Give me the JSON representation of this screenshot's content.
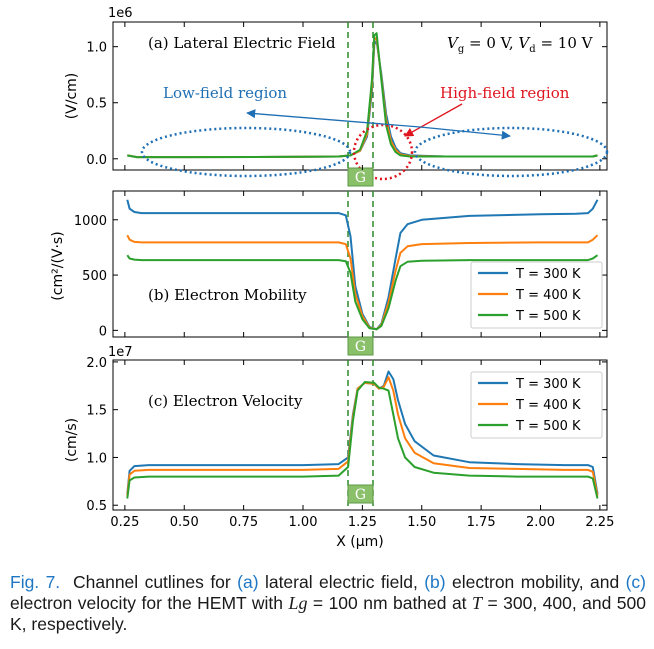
{
  "chart_data": [
    {
      "type": "line",
      "panel": "a",
      "title": "(a) Lateral Electric Field",
      "condition_text": "V_g = 0 V, V_d = 10 V",
      "ylabel": "(V/cm)",
      "scale_label": "1e6",
      "ylim": [
        -0.1,
        1.22
      ],
      "xlim": [
        0.2,
        2.28
      ],
      "yticks": [
        0.0,
        0.5,
        1.0
      ],
      "ytick_labels": [
        "0.0",
        "0.5",
        "1.0"
      ],
      "series": [
        {
          "name": "T = 300 K",
          "color": "#1f77b4",
          "x": [
            0.26,
            0.3,
            0.5,
            0.8,
            1.0,
            1.15,
            1.2,
            1.24,
            1.27,
            1.29,
            1.3,
            1.31,
            1.33,
            1.35,
            1.37,
            1.39,
            1.41,
            1.45,
            1.6,
            2.0,
            2.22,
            2.24
          ],
          "y": [
            0.03,
            0.015,
            0.015,
            0.016,
            0.018,
            0.02,
            0.03,
            0.07,
            0.2,
            0.6,
            1.02,
            1.05,
            0.75,
            0.4,
            0.2,
            0.1,
            0.05,
            0.03,
            0.02,
            0.02,
            0.02,
            0.03
          ]
        },
        {
          "name": "T = 400 K",
          "color": "#ff7f0e",
          "x": [
            0.26,
            0.3,
            0.5,
            0.8,
            1.0,
            1.15,
            1.2,
            1.24,
            1.27,
            1.29,
            1.3,
            1.31,
            1.33,
            1.35,
            1.37,
            1.39,
            1.41,
            1.45,
            1.6,
            2.0,
            2.22,
            2.24
          ],
          "y": [
            0.03,
            0.015,
            0.015,
            0.016,
            0.018,
            0.02,
            0.03,
            0.07,
            0.22,
            0.65,
            1.06,
            1.08,
            0.72,
            0.35,
            0.16,
            0.08,
            0.04,
            0.025,
            0.02,
            0.02,
            0.02,
            0.03
          ]
        },
        {
          "name": "T = 500 K",
          "color": "#2ca02c",
          "x": [
            0.26,
            0.3,
            0.5,
            0.8,
            1.0,
            1.15,
            1.2,
            1.24,
            1.27,
            1.29,
            1.3,
            1.31,
            1.33,
            1.35,
            1.37,
            1.39,
            1.41,
            1.45,
            1.6,
            2.0,
            2.22,
            2.24
          ],
          "y": [
            0.03,
            0.015,
            0.015,
            0.016,
            0.018,
            0.02,
            0.03,
            0.08,
            0.25,
            0.7,
            1.1,
            1.12,
            0.7,
            0.3,
            0.13,
            0.06,
            0.03,
            0.02,
            0.02,
            0.02,
            0.02,
            0.03
          ]
        }
      ],
      "annotations": [
        {
          "text": "Low-field region",
          "color": "#1f6fb4"
        },
        {
          "text": "High-field region",
          "color": "#e0141e"
        }
      ],
      "gate_label": "G"
    },
    {
      "type": "line",
      "panel": "b",
      "title": "(b) Electron Mobility",
      "ylabel": "(cm²/(V·s)",
      "ylim": [
        -60,
        1260
      ],
      "xlim": [
        0.2,
        2.28
      ],
      "yticks": [
        0,
        500,
        1000
      ],
      "ytick_labels": [
        "0",
        "500",
        "1000"
      ],
      "legend": [
        "T = 300 K",
        "T = 400 K",
        "T = 500 K"
      ],
      "series": [
        {
          "name": "T = 300 K",
          "color": "#1f77b4",
          "x": [
            0.26,
            0.27,
            0.29,
            0.32,
            0.6,
            1.0,
            1.15,
            1.18,
            1.2,
            1.22,
            1.25,
            1.28,
            1.31,
            1.33,
            1.36,
            1.39,
            1.41,
            1.44,
            1.5,
            1.7,
            2.0,
            2.15,
            2.2,
            2.22,
            2.24
          ],
          "y": [
            1180,
            1100,
            1070,
            1060,
            1060,
            1060,
            1060,
            1040,
            850,
            400,
            150,
            30,
            10,
            60,
            300,
            650,
            880,
            960,
            1000,
            1035,
            1050,
            1055,
            1060,
            1100,
            1180
          ]
        },
        {
          "name": "T = 400 K",
          "color": "#ff7f0e",
          "x": [
            0.26,
            0.27,
            0.29,
            0.32,
            0.6,
            1.0,
            1.15,
            1.18,
            1.2,
            1.22,
            1.25,
            1.28,
            1.31,
            1.33,
            1.36,
            1.39,
            1.41,
            1.44,
            1.5,
            1.7,
            2.0,
            2.15,
            2.2,
            2.22,
            2.24
          ],
          "y": [
            860,
            820,
            800,
            795,
            795,
            795,
            795,
            780,
            650,
            330,
            130,
            25,
            10,
            50,
            250,
            540,
            700,
            760,
            780,
            790,
            795,
            795,
            795,
            820,
            860
          ]
        },
        {
          "name": "T = 500 K",
          "color": "#2ca02c",
          "x": [
            0.26,
            0.27,
            0.29,
            0.32,
            0.6,
            1.0,
            1.15,
            1.18,
            1.2,
            1.22,
            1.25,
            1.28,
            1.31,
            1.33,
            1.36,
            1.39,
            1.41,
            1.44,
            1.5,
            1.7,
            2.0,
            2.15,
            2.2,
            2.22,
            2.24
          ],
          "y": [
            680,
            650,
            640,
            635,
            635,
            635,
            635,
            625,
            520,
            260,
            100,
            20,
            10,
            40,
            200,
            450,
            580,
            620,
            630,
            635,
            635,
            635,
            635,
            650,
            680
          ]
        }
      ],
      "gate_label": "G"
    },
    {
      "type": "line",
      "panel": "c",
      "title": "(c) Electron Velocity",
      "ylabel": "(cm/s)",
      "scale_label": "1e7",
      "ylim": [
        0.45,
        2.02
      ],
      "xlim": [
        0.2,
        2.28
      ],
      "xlabel": "X (μm)",
      "yticks": [
        0.5,
        1.0,
        1.5,
        2.0
      ],
      "ytick_labels": [
        "0.5",
        "1.0",
        "1.5",
        "2.0"
      ],
      "xticks": [
        0.25,
        0.5,
        0.75,
        1.0,
        1.25,
        1.5,
        1.75,
        2.0,
        2.25
      ],
      "xtick_labels": [
        "0.25",
        "0.50",
        "0.75",
        "1.00",
        "1.25",
        "1.50",
        "1.75",
        "2.00",
        "2.25"
      ],
      "legend": [
        "T = 300 K",
        "T = 400 K",
        "T = 500 K"
      ],
      "series": [
        {
          "name": "T = 300 K",
          "color": "#1f77b4",
          "x": [
            0.26,
            0.27,
            0.29,
            0.35,
            0.6,
            1.0,
            1.15,
            1.19,
            1.21,
            1.23,
            1.26,
            1.3,
            1.32,
            1.34,
            1.36,
            1.38,
            1.4,
            1.43,
            1.47,
            1.55,
            1.7,
            1.9,
            2.1,
            2.2,
            2.22,
            2.24
          ],
          "y": [
            0.62,
            0.86,
            0.91,
            0.92,
            0.92,
            0.92,
            0.93,
            1.0,
            1.45,
            1.72,
            1.78,
            1.77,
            1.72,
            1.75,
            1.9,
            1.82,
            1.6,
            1.35,
            1.17,
            1.02,
            0.95,
            0.93,
            0.92,
            0.92,
            0.9,
            0.62
          ]
        },
        {
          "name": "T = 400 K",
          "color": "#ff7f0e",
          "x": [
            0.26,
            0.27,
            0.29,
            0.35,
            0.6,
            1.0,
            1.15,
            1.19,
            1.21,
            1.23,
            1.26,
            1.3,
            1.32,
            1.34,
            1.36,
            1.38,
            1.4,
            1.43,
            1.47,
            1.55,
            1.7,
            1.9,
            2.1,
            2.2,
            2.22,
            2.24
          ],
          "y": [
            0.6,
            0.82,
            0.86,
            0.87,
            0.87,
            0.87,
            0.88,
            0.96,
            1.42,
            1.72,
            1.78,
            1.77,
            1.72,
            1.74,
            1.84,
            1.7,
            1.45,
            1.2,
            1.05,
            0.94,
            0.89,
            0.88,
            0.87,
            0.87,
            0.85,
            0.6
          ]
        },
        {
          "name": "T = 500 K",
          "color": "#2ca02c",
          "x": [
            0.26,
            0.27,
            0.29,
            0.35,
            0.6,
            1.0,
            1.15,
            1.19,
            1.21,
            1.23,
            1.26,
            1.3,
            1.32,
            1.34,
            1.36,
            1.38,
            1.4,
            1.43,
            1.47,
            1.55,
            1.7,
            1.9,
            2.1,
            2.2,
            2.22,
            2.24
          ],
          "y": [
            0.57,
            0.76,
            0.79,
            0.8,
            0.8,
            0.8,
            0.81,
            0.9,
            1.38,
            1.7,
            1.79,
            1.78,
            1.73,
            1.72,
            1.7,
            1.45,
            1.2,
            1.0,
            0.9,
            0.84,
            0.81,
            0.8,
            0.8,
            0.8,
            0.78,
            0.57
          ]
        }
      ],
      "gate_label": "G"
    }
  ],
  "caption": {
    "lead": "Fig. 7.",
    "t1": "Channel cutlines for ",
    "a": "(a)",
    "t2": " lateral electric field, ",
    "b": "(b)",
    "t3": " electron mobility, and ",
    "c": "(c)",
    "t4": " electron velocity for the HEMT with ",
    "lg": "Lg",
    "t5": " = 100 nm bathed at ",
    "T": "T",
    "t6": " = 300, 400, and 500 K, respectively."
  },
  "colors": {
    "t300": "#1f77b4",
    "t400": "#ff7f0e",
    "t500": "#2ca02c",
    "gate_fill": "#8bc06a",
    "caption_accent": "#1f77c4"
  }
}
